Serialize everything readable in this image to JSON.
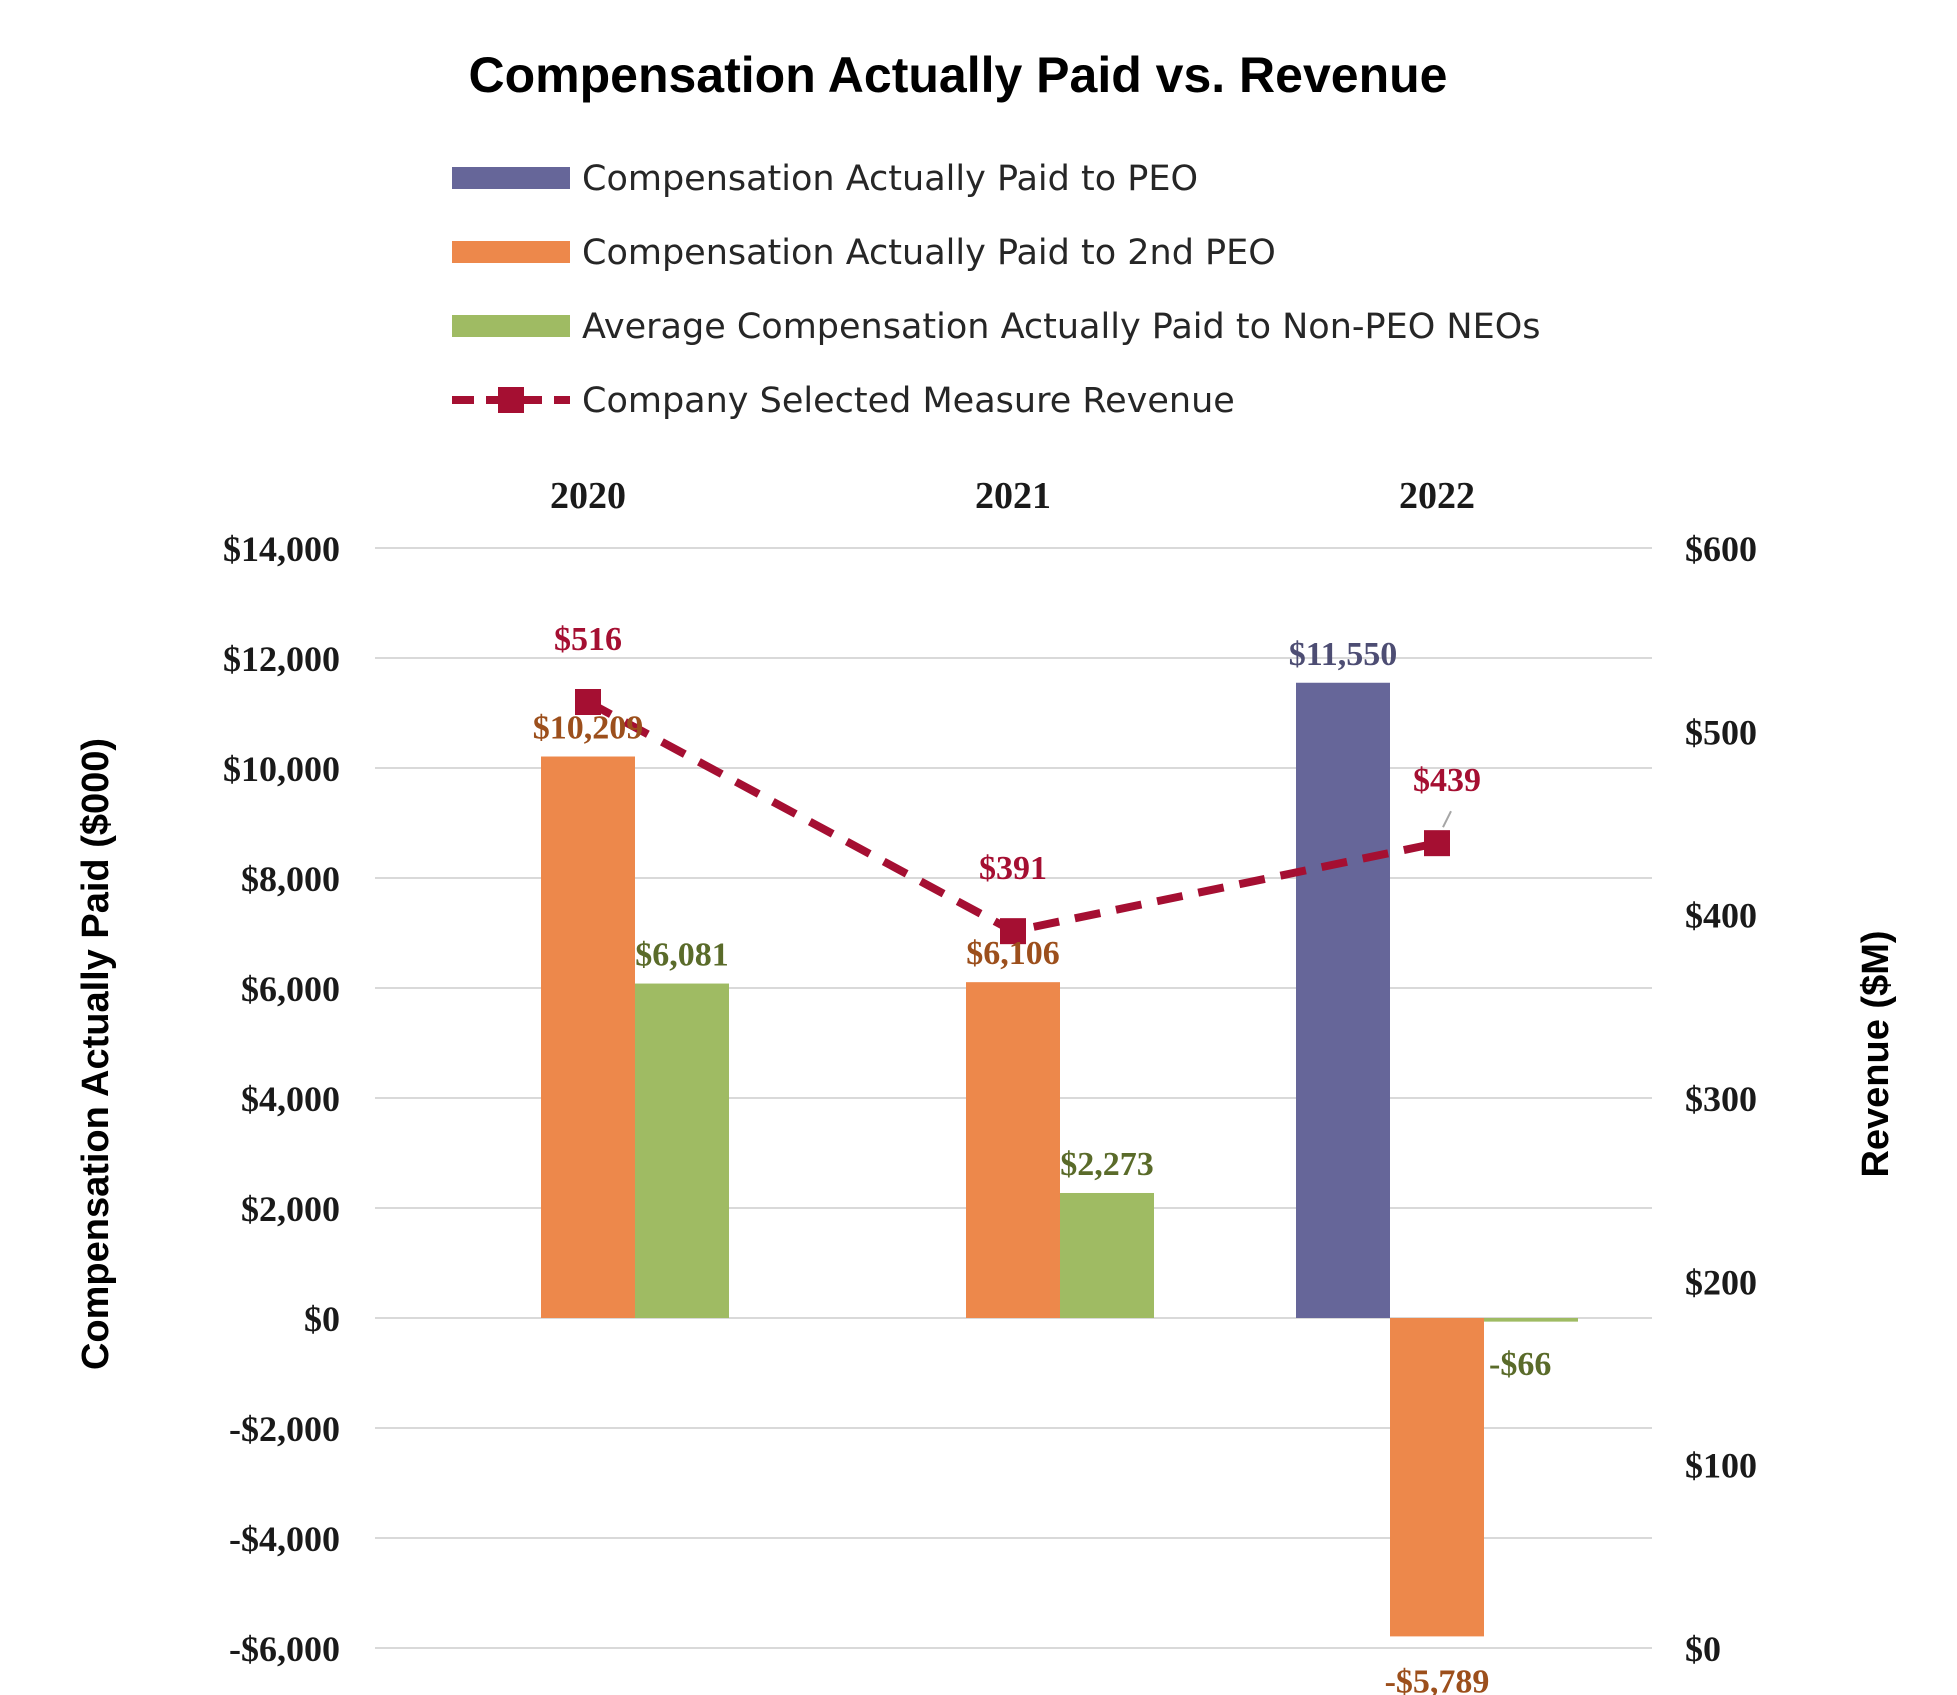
{
  "chart_data": {
    "type": "bar",
    "title": "Compensation Actually Paid vs. Revenue",
    "categories": [
      "2020",
      "2021",
      "2022"
    ],
    "ylabel": "Compensation Actually Paid ($000)",
    "y2label": "Revenue ($M)",
    "ylim": [
      -6000,
      14000
    ],
    "y2lim": [
      0,
      600
    ],
    "y_ticks": [
      14000,
      12000,
      10000,
      8000,
      6000,
      4000,
      2000,
      0,
      -2000,
      -4000,
      -6000
    ],
    "y_tick_labels": [
      "$14,000",
      "$12,000",
      "$10,000",
      "$8,000",
      "$6,000",
      "$4,000",
      "$2,000",
      "$0",
      "-$2,000",
      "-$4,000",
      "-$6,000"
    ],
    "y2_ticks": [
      600,
      500,
      400,
      300,
      200,
      100,
      0
    ],
    "y2_tick_labels": [
      "$600",
      "$500",
      "$400",
      "$300",
      "$200",
      "$100",
      "$0"
    ],
    "grid": true,
    "legend_position": "top",
    "series": [
      {
        "name": "Compensation Actually Paid to PEO",
        "kind": "bar",
        "axis": "left",
        "color": "#666699",
        "label_color": "#4d4d73",
        "values": [
          null,
          null,
          11550
        ],
        "labels": [
          "",
          "",
          "$11,550"
        ]
      },
      {
        "name": "Compensation Actually Paid to 2nd PEO",
        "kind": "bar",
        "axis": "left",
        "color": "#ed884b",
        "label_color": "#9c4f1c",
        "values": [
          10209,
          6106,
          -5789
        ],
        "labels": [
          "$10,209",
          "$6,106",
          "-$5,789"
        ]
      },
      {
        "name": "Average Compensation Actually Paid to Non-PEO NEOs",
        "kind": "bar",
        "axis": "left",
        "color": "#9fbb63",
        "label_color": "#5a6b2a",
        "values": [
          6081,
          2273,
          -66
        ],
        "labels": [
          "$6,081",
          "$2,273",
          "-$66"
        ]
      },
      {
        "name": "Company Selected Measure Revenue",
        "kind": "line",
        "axis": "right",
        "color": "#a50f32",
        "label_color": "#a50f32",
        "values": [
          516,
          391,
          439
        ],
        "labels": [
          "$516",
          "$391",
          "$439"
        ]
      }
    ]
  }
}
